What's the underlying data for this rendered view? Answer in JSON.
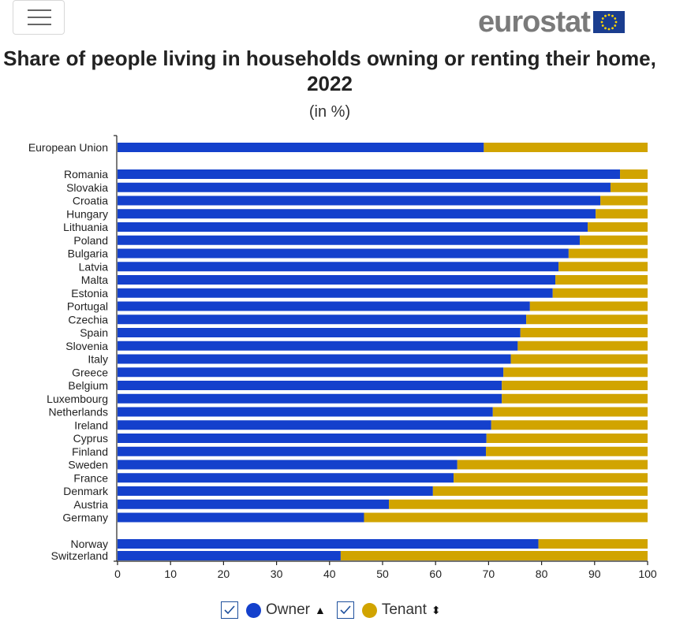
{
  "brand": {
    "name": "eurostat"
  },
  "colors": {
    "owner": "#1440CC",
    "tenant": "#D1A400",
    "eu_flag": "#1A3D8F"
  },
  "icons": {
    "menu": "hamburger-menu-icon",
    "checkbox": "check-icon",
    "sort_up": "sort-ascending-icon",
    "sort_both": "sort-icon"
  },
  "chart_data": {
    "type": "bar",
    "orientation": "horizontal",
    "stacked": true,
    "title": "Share of people living in households owning or renting their home, 2022",
    "subtitle": "(in %)",
    "xlim": [
      0,
      100
    ],
    "xticks": [
      0,
      10,
      20,
      30,
      40,
      50,
      60,
      70,
      80,
      90,
      100
    ],
    "grid": false,
    "legend_position": "bottom",
    "categories": [
      "European Union",
      "Romania",
      "Slovakia",
      "Croatia",
      "Hungary",
      "Lithuania",
      "Poland",
      "Bulgaria",
      "Latvia",
      "Malta",
      "Estonia",
      "Portugal",
      "Czechia",
      "Spain",
      "Slovenia",
      "Italy",
      "Greece",
      "Belgium",
      "Luxembourg",
      "Netherlands",
      "Ireland",
      "Cyprus",
      "Finland",
      "Sweden",
      "France",
      "Denmark",
      "Austria",
      "Germany",
      "Norway",
      "Switzerland"
    ],
    "series": [
      {
        "name": "Owner",
        "values": [
          69.1,
          94.8,
          93.0,
          91.1,
          90.2,
          88.7,
          87.2,
          85.1,
          83.2,
          82.6,
          82.1,
          77.8,
          77.1,
          76.0,
          75.5,
          74.2,
          72.8,
          72.5,
          72.5,
          70.8,
          70.5,
          69.6,
          69.5,
          64.1,
          63.4,
          59.5,
          51.2,
          46.5,
          79.4,
          42.1
        ]
      },
      {
        "name": "Tenant",
        "values": [
          30.9,
          5.2,
          7.0,
          8.9,
          9.8,
          11.3,
          12.8,
          14.9,
          16.8,
          17.4,
          17.9,
          22.2,
          22.9,
          24.0,
          24.5,
          25.8,
          27.2,
          27.5,
          27.5,
          29.2,
          29.5,
          30.4,
          30.5,
          35.9,
          36.6,
          40.5,
          48.8,
          53.5,
          20.6,
          57.9
        ]
      }
    ]
  },
  "legend": [
    {
      "label": "Owner",
      "checked": true
    },
    {
      "label": "Tenant",
      "checked": true
    }
  ]
}
